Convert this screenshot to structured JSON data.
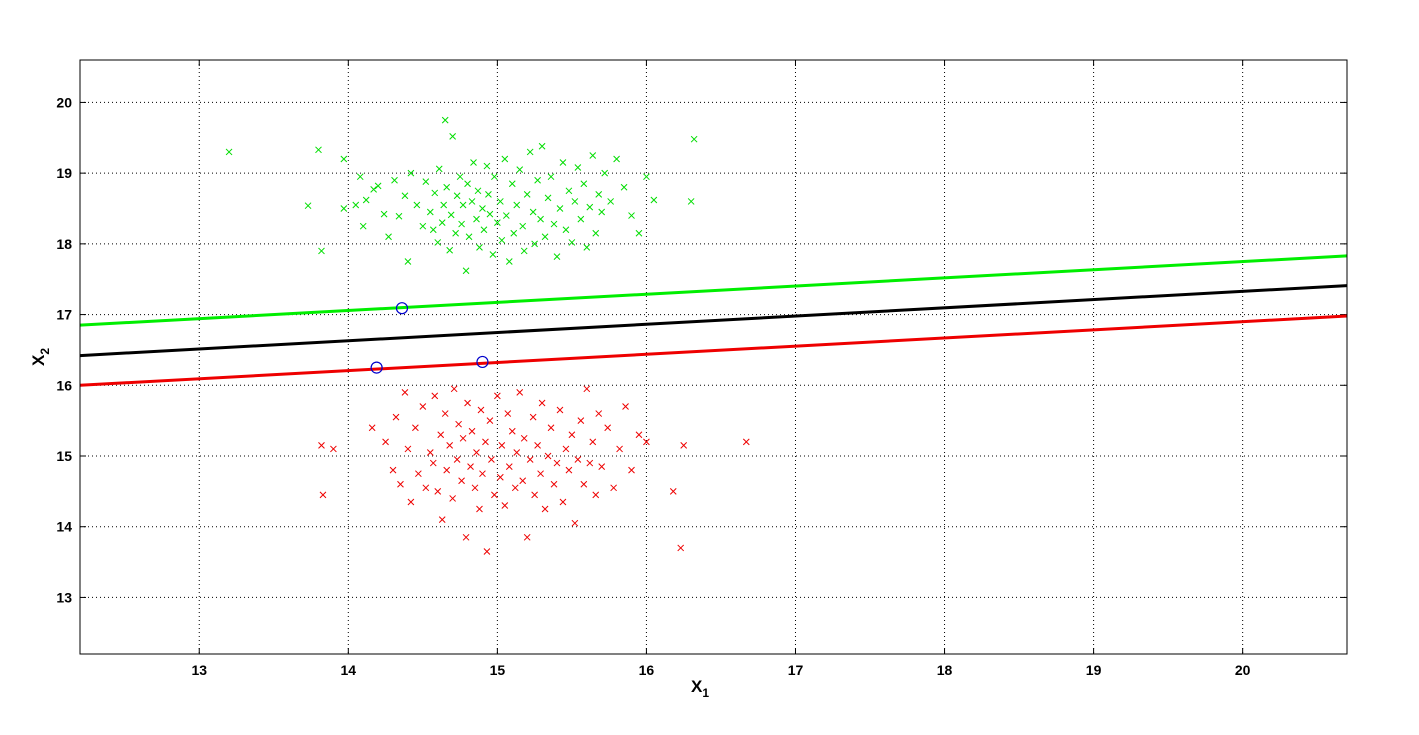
{
  "chart_data": {
    "type": "scatter",
    "title": "",
    "xlabel": "X",
    "xlabel_sub": "1",
    "ylabel": "X",
    "ylabel_sub": "2",
    "xlim": [
      12.2,
      20.7
    ],
    "ylim": [
      12.2,
      20.6
    ],
    "xticks": [
      13,
      14,
      15,
      16,
      17,
      18,
      19,
      20
    ],
    "yticks": [
      13,
      14,
      15,
      16,
      17,
      18,
      19,
      20
    ],
    "grid": true,
    "grid_style": "dotted",
    "marker_colors": {
      "green": "#00dd00",
      "red": "#ee0000",
      "support": "#0000cc"
    },
    "lines": [
      {
        "color": "#00ee00",
        "x": [
          12.2,
          20.7
        ],
        "y": [
          16.85,
          17.83
        ]
      },
      {
        "color": "#000000",
        "x": [
          12.2,
          20.7
        ],
        "y": [
          16.42,
          17.41
        ]
      },
      {
        "color": "#ee0000",
        "x": [
          12.2,
          20.7
        ],
        "y": [
          16.0,
          16.98
        ]
      }
    ],
    "support_vectors": [
      [
        14.36,
        17.09
      ],
      [
        14.19,
        16.25
      ],
      [
        14.9,
        16.33
      ]
    ],
    "series": [
      {
        "color": "#00dd00",
        "marker": "x",
        "points": [
          [
            13.2,
            19.3
          ],
          [
            13.8,
            19.33
          ],
          [
            13.73,
            18.54
          ],
          [
            13.82,
            17.9
          ],
          [
            13.97,
            19.2
          ],
          [
            13.97,
            18.5
          ],
          [
            14.05,
            18.55
          ],
          [
            14.08,
            18.95
          ],
          [
            14.1,
            18.25
          ],
          [
            14.12,
            18.62
          ],
          [
            14.17,
            18.77
          ],
          [
            14.2,
            18.82
          ],
          [
            14.24,
            18.42
          ],
          [
            14.27,
            18.1
          ],
          [
            14.31,
            18.9
          ],
          [
            14.34,
            18.39
          ],
          [
            14.38,
            18.68
          ],
          [
            14.4,
            17.75
          ],
          [
            14.42,
            19.0
          ],
          [
            14.46,
            18.55
          ],
          [
            14.5,
            18.25
          ],
          [
            14.52,
            18.88
          ],
          [
            14.55,
            18.45
          ],
          [
            14.57,
            18.2
          ],
          [
            14.58,
            18.72
          ],
          [
            14.6,
            18.02
          ],
          [
            14.61,
            19.06
          ],
          [
            14.63,
            18.3
          ],
          [
            14.64,
            18.55
          ],
          [
            14.65,
            19.75
          ],
          [
            14.66,
            18.8
          ],
          [
            14.68,
            17.91
          ],
          [
            14.69,
            18.41
          ],
          [
            14.7,
            19.52
          ],
          [
            14.72,
            18.15
          ],
          [
            14.73,
            18.68
          ],
          [
            14.75,
            18.95
          ],
          [
            14.76,
            18.28
          ],
          [
            14.77,
            18.55
          ],
          [
            14.79,
            17.62
          ],
          [
            14.8,
            18.85
          ],
          [
            14.81,
            18.1
          ],
          [
            14.83,
            18.6
          ],
          [
            14.84,
            19.15
          ],
          [
            14.86,
            18.35
          ],
          [
            14.87,
            18.75
          ],
          [
            14.88,
            17.95
          ],
          [
            14.9,
            18.5
          ],
          [
            14.91,
            18.2
          ],
          [
            14.93,
            19.1
          ],
          [
            14.94,
            18.7
          ],
          [
            14.95,
            18.42
          ],
          [
            14.97,
            17.85
          ],
          [
            14.98,
            18.95
          ],
          [
            15.0,
            18.3
          ],
          [
            15.02,
            18.6
          ],
          [
            15.03,
            18.05
          ],
          [
            15.05,
            19.2
          ],
          [
            15.06,
            18.4
          ],
          [
            15.08,
            17.75
          ],
          [
            15.1,
            18.85
          ],
          [
            15.11,
            18.15
          ],
          [
            15.13,
            18.55
          ],
          [
            15.15,
            19.05
          ],
          [
            15.17,
            18.25
          ],
          [
            15.18,
            17.9
          ],
          [
            15.2,
            18.7
          ],
          [
            15.22,
            19.3
          ],
          [
            15.24,
            18.45
          ],
          [
            15.25,
            18.0
          ],
          [
            15.27,
            18.9
          ],
          [
            15.29,
            18.35
          ],
          [
            15.3,
            19.38
          ],
          [
            15.32,
            18.1
          ],
          [
            15.34,
            18.65
          ],
          [
            15.36,
            18.95
          ],
          [
            15.38,
            18.28
          ],
          [
            15.4,
            17.82
          ],
          [
            15.42,
            18.5
          ],
          [
            15.44,
            19.15
          ],
          [
            15.46,
            18.2
          ],
          [
            15.48,
            18.75
          ],
          [
            15.5,
            18.02
          ],
          [
            15.52,
            18.6
          ],
          [
            15.54,
            19.08
          ],
          [
            15.56,
            18.35
          ],
          [
            15.58,
            18.85
          ],
          [
            15.6,
            17.95
          ],
          [
            15.62,
            18.52
          ],
          [
            15.64,
            19.25
          ],
          [
            15.66,
            18.15
          ],
          [
            15.68,
            18.7
          ],
          [
            15.7,
            18.45
          ],
          [
            15.72,
            19.0
          ],
          [
            15.76,
            18.6
          ],
          [
            15.8,
            19.2
          ],
          [
            15.85,
            18.8
          ],
          [
            15.9,
            18.4
          ],
          [
            15.95,
            18.15
          ],
          [
            16.0,
            18.95
          ],
          [
            16.05,
            18.62
          ],
          [
            16.3,
            18.6
          ],
          [
            16.32,
            19.48
          ]
        ]
      },
      {
        "color": "#ee0000",
        "marker": "x",
        "points": [
          [
            13.82,
            15.15
          ],
          [
            13.83,
            14.45
          ],
          [
            13.9,
            15.1
          ],
          [
            14.16,
            15.4
          ],
          [
            14.25,
            15.2
          ],
          [
            14.3,
            14.8
          ],
          [
            14.32,
            15.55
          ],
          [
            14.35,
            14.6
          ],
          [
            14.38,
            15.9
          ],
          [
            14.4,
            15.1
          ],
          [
            14.42,
            14.35
          ],
          [
            14.45,
            15.4
          ],
          [
            14.47,
            14.75
          ],
          [
            14.5,
            15.7
          ],
          [
            14.52,
            14.55
          ],
          [
            14.55,
            15.05
          ],
          [
            14.57,
            14.9
          ],
          [
            14.58,
            15.85
          ],
          [
            14.6,
            14.5
          ],
          [
            14.62,
            15.3
          ],
          [
            14.63,
            14.1
          ],
          [
            14.65,
            15.6
          ],
          [
            14.66,
            14.8
          ],
          [
            14.68,
            15.15
          ],
          [
            14.7,
            14.4
          ],
          [
            14.71,
            15.95
          ],
          [
            14.73,
            14.95
          ],
          [
            14.74,
            15.45
          ],
          [
            14.76,
            14.65
          ],
          [
            14.77,
            15.25
          ],
          [
            14.79,
            13.85
          ],
          [
            14.8,
            15.75
          ],
          [
            14.82,
            14.85
          ],
          [
            14.83,
            15.35
          ],
          [
            14.85,
            14.55
          ],
          [
            14.86,
            15.05
          ],
          [
            14.88,
            14.25
          ],
          [
            14.89,
            15.65
          ],
          [
            14.9,
            14.75
          ],
          [
            14.92,
            15.2
          ],
          [
            14.93,
            13.65
          ],
          [
            14.95,
            15.5
          ],
          [
            14.96,
            14.95
          ],
          [
            14.98,
            14.45
          ],
          [
            15.0,
            15.85
          ],
          [
            15.02,
            14.7
          ],
          [
            15.03,
            15.15
          ],
          [
            15.05,
            14.3
          ],
          [
            15.07,
            15.6
          ],
          [
            15.08,
            14.85
          ],
          [
            15.1,
            15.35
          ],
          [
            15.12,
            14.55
          ],
          [
            15.13,
            15.05
          ],
          [
            15.15,
            15.9
          ],
          [
            15.17,
            14.65
          ],
          [
            15.18,
            15.25
          ],
          [
            15.2,
            13.85
          ],
          [
            15.22,
            14.95
          ],
          [
            15.24,
            15.55
          ],
          [
            15.25,
            14.45
          ],
          [
            15.27,
            15.15
          ],
          [
            15.29,
            14.75
          ],
          [
            15.3,
            15.75
          ],
          [
            15.32,
            14.25
          ],
          [
            15.34,
            15.0
          ],
          [
            15.36,
            15.4
          ],
          [
            15.38,
            14.6
          ],
          [
            15.4,
            14.9
          ],
          [
            15.42,
            15.65
          ],
          [
            15.44,
            14.35
          ],
          [
            15.46,
            15.1
          ],
          [
            15.48,
            14.8
          ],
          [
            15.5,
            15.3
          ],
          [
            15.52,
            14.05
          ],
          [
            15.54,
            14.95
          ],
          [
            15.56,
            15.5
          ],
          [
            15.58,
            14.6
          ],
          [
            15.6,
            15.95
          ],
          [
            15.62,
            14.9
          ],
          [
            15.64,
            15.2
          ],
          [
            15.66,
            14.45
          ],
          [
            15.68,
            15.6
          ],
          [
            15.7,
            14.85
          ],
          [
            15.74,
            15.4
          ],
          [
            15.78,
            14.55
          ],
          [
            15.82,
            15.1
          ],
          [
            15.86,
            15.7
          ],
          [
            15.9,
            14.8
          ],
          [
            15.95,
            15.3
          ],
          [
            16.0,
            15.2
          ],
          [
            16.18,
            14.5
          ],
          [
            16.23,
            13.7
          ],
          [
            16.25,
            15.15
          ],
          [
            16.67,
            15.2
          ]
        ]
      }
    ]
  }
}
